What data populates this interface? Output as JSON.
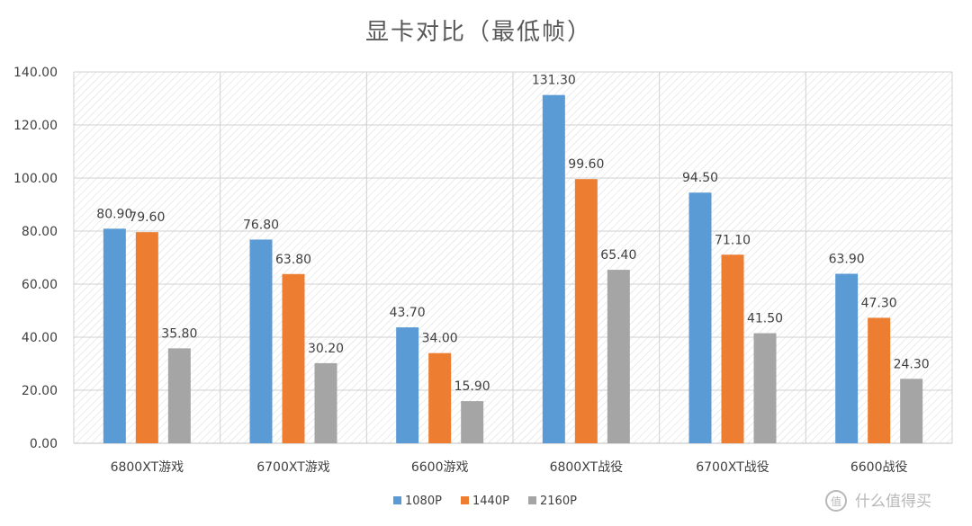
{
  "chart_data": {
    "type": "bar",
    "title": "显卡对比（最低帧）",
    "categories": [
      "6800XT游戏",
      "6700XT游戏",
      "6600游戏",
      "6800XT战役",
      "6700XT战役",
      "6600战役"
    ],
    "series": [
      {
        "name": "1080P",
        "color": "#5b9bd5",
        "values": [
          80.9,
          76.8,
          43.7,
          131.3,
          94.5,
          63.9
        ]
      },
      {
        "name": "1440P",
        "color": "#ed7d31",
        "values": [
          79.6,
          63.8,
          34.0,
          99.6,
          71.1,
          47.3
        ]
      },
      {
        "name": "2160P",
        "color": "#a5a5a5",
        "values": [
          35.8,
          30.2,
          15.9,
          65.4,
          41.5,
          24.3
        ]
      }
    ],
    "ylim": [
      0,
      140
    ],
    "yticks": [
      "0.00",
      "20.00",
      "40.00",
      "60.00",
      "80.00",
      "100.00",
      "120.00",
      "140.00"
    ],
    "ytick_values": [
      0,
      20,
      40,
      60,
      80,
      100,
      120,
      140
    ],
    "value_format_decimals": 2,
    "grid": true,
    "background": "hatched",
    "legend_position": "bottom"
  },
  "watermark": {
    "text": "值 什么值得买",
    "icon": "smzdm-logo-icon"
  }
}
